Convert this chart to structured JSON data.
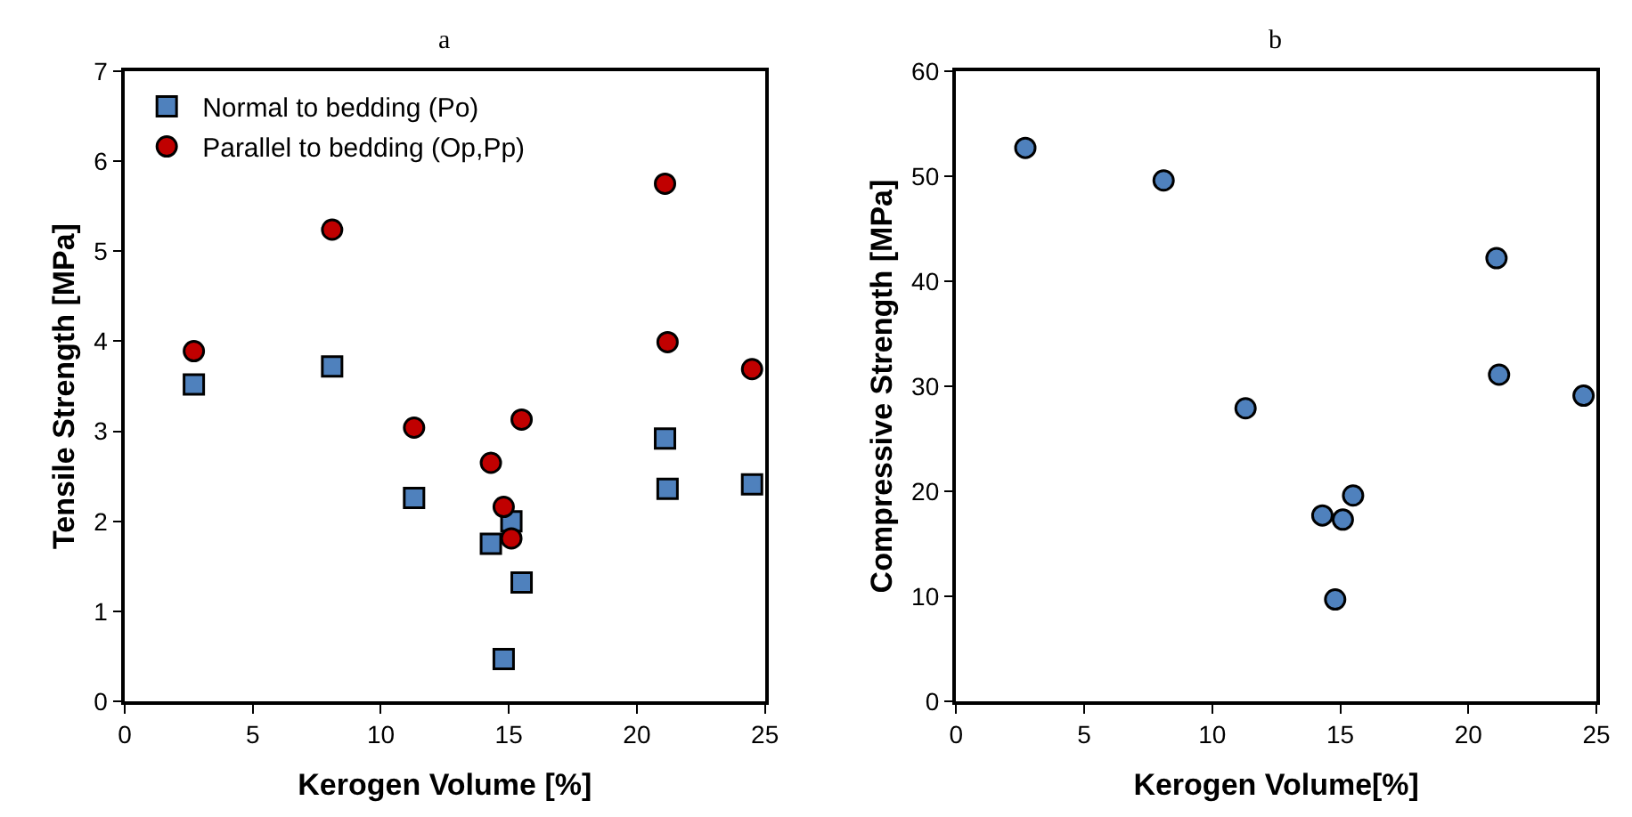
{
  "chart_data": [
    {
      "type": "scatter",
      "title": "a",
      "xlabel": "Kerogen Volume [%]",
      "ylabel": "Tensile Strength [MPa]",
      "xlim": [
        0,
        25
      ],
      "xticks": [
        0,
        5,
        10,
        15,
        20,
        25
      ],
      "ylim": [
        0,
        7
      ],
      "yticks": [
        0,
        1,
        2,
        3,
        4,
        5,
        6,
        7
      ],
      "legend": "top left",
      "series": [
        {
          "name": "Normal to bedding (Po)",
          "color": "#4f81bd",
          "marker": "square",
          "x": [
            2.7,
            8.1,
            11.3,
            14.3,
            14.8,
            15.1,
            15.5,
            21.1,
            21.2,
            24.5
          ],
          "values": [
            3.52,
            3.72,
            2.26,
            1.75,
            0.47,
            2.0,
            1.32,
            2.92,
            2.36,
            2.41
          ]
        },
        {
          "name": "Parallel to bedding (Op,Pp)",
          "color": "#c00000",
          "marker": "circle",
          "x": [
            2.7,
            8.1,
            11.3,
            14.3,
            14.8,
            15.1,
            15.5,
            21.1,
            21.2,
            24.5
          ],
          "values": [
            3.89,
            5.24,
            3.04,
            2.65,
            2.16,
            1.81,
            3.13,
            5.75,
            3.99,
            3.69
          ]
        }
      ]
    },
    {
      "type": "scatter",
      "title": "b",
      "xlabel": "Kerogen Volume[%]",
      "ylabel": "Compressive Strength [MPa]",
      "xlim": [
        0,
        25
      ],
      "xticks": [
        0,
        5,
        10,
        15,
        20,
        25
      ],
      "ylim": [
        0,
        60
      ],
      "yticks": [
        0,
        10,
        20,
        30,
        40,
        50,
        60
      ],
      "legend": false,
      "series": [
        {
          "color": "#4f81bd",
          "marker": "circle",
          "x": [
            2.7,
            8.1,
            11.3,
            14.3,
            14.8,
            15.1,
            15.5,
            21.1,
            21.2,
            24.5
          ],
          "values": [
            52.7,
            49.6,
            27.9,
            17.7,
            9.7,
            17.3,
            19.6,
            42.2,
            31.1,
            29.1
          ]
        }
      ]
    }
  ]
}
